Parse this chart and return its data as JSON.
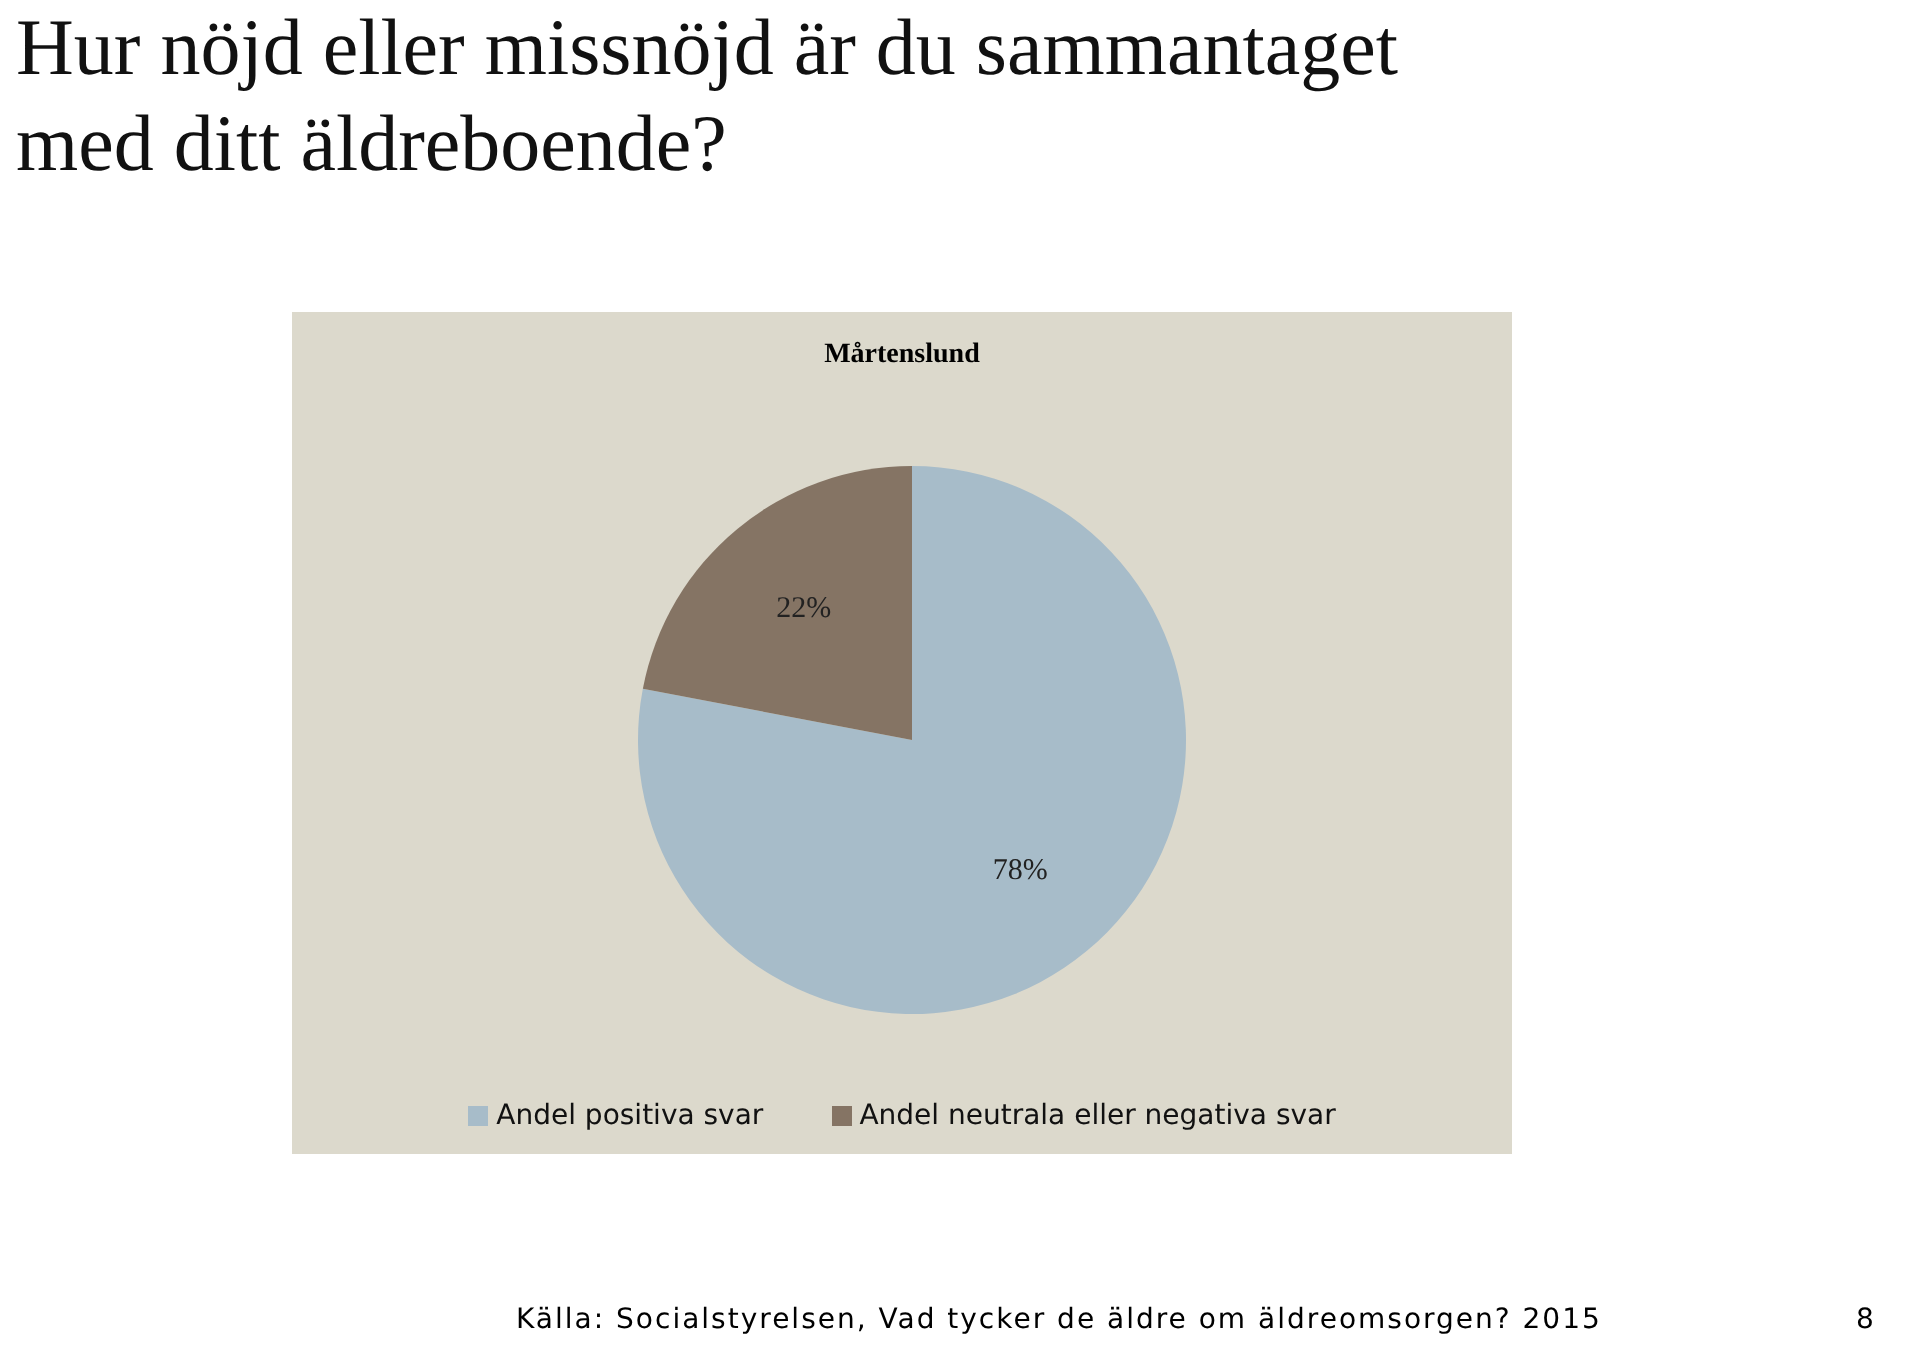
{
  "chart_data": {
    "type": "pie",
    "title": "Hur nöjd eller missnöjd är du sammantaget med ditt äldreboende?",
    "subtitle": "Mårtenslund",
    "categories": [
      "Andel positiva svar",
      "Andel neutrala eller negativa svar"
    ],
    "values": [
      78,
      22
    ],
    "colors": [
      "#a7bcc9",
      "#857464"
    ],
    "value_labels": [
      "78%",
      "22%"
    ],
    "legend": "bottom",
    "annotations": [
      "Källa: Socialstyrelsen, Vad tycker de äldre om äldreomsorgen? 2015",
      "8"
    ]
  }
}
